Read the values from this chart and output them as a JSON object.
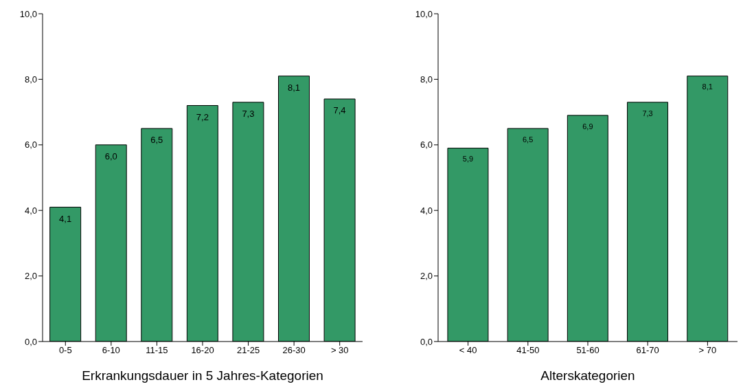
{
  "chart_data": [
    {
      "type": "bar",
      "xlabel": "Erkrankungsdauer in 5 Jahres-Kategorien",
      "categories": [
        "0-5",
        "6-10",
        "11-15",
        "16-20",
        "21-25",
        "26-30",
        "> 30"
      ],
      "values": [
        4.1,
        6.0,
        6.5,
        7.2,
        7.3,
        8.1,
        7.4
      ],
      "color": "#339966",
      "value_labels": [
        "4,1",
        "6,0",
        "6,5",
        "7,2",
        "7,3",
        "8,1",
        "7,4"
      ],
      "ylim": [
        0,
        10
      ],
      "yticks": [
        {
          "value": 0,
          "label": "0,0"
        },
        {
          "value": 2,
          "label": "2,0"
        },
        {
          "value": 4,
          "label": "4,0"
        },
        {
          "value": 6,
          "label": "6,0"
        },
        {
          "value": 8,
          "label": "8,0"
        },
        {
          "value": 10,
          "label": "10,0"
        }
      ],
      "grid": false,
      "legend": false
    },
    {
      "type": "bar",
      "xlabel": "Alterskategorien",
      "categories": [
        "< 40",
        "41-50",
        "51-60",
        "61-70",
        "> 70"
      ],
      "values": [
        5.9,
        6.5,
        6.9,
        7.3,
        8.1
      ],
      "color": "#339966",
      "value_labels": [
        "5,9",
        "6,5",
        "6,9",
        "7,3",
        "8,1"
      ],
      "ylim": [
        0,
        10
      ],
      "yticks": [
        {
          "value": 0,
          "label": "0,0"
        },
        {
          "value": 2,
          "label": "2,0"
        },
        {
          "value": 4,
          "label": "4,0"
        },
        {
          "value": 6,
          "label": "6,0"
        },
        {
          "value": 8,
          "label": "8,0"
        },
        {
          "value": 10,
          "label": "10,0"
        }
      ],
      "grid": false,
      "legend": false
    }
  ]
}
